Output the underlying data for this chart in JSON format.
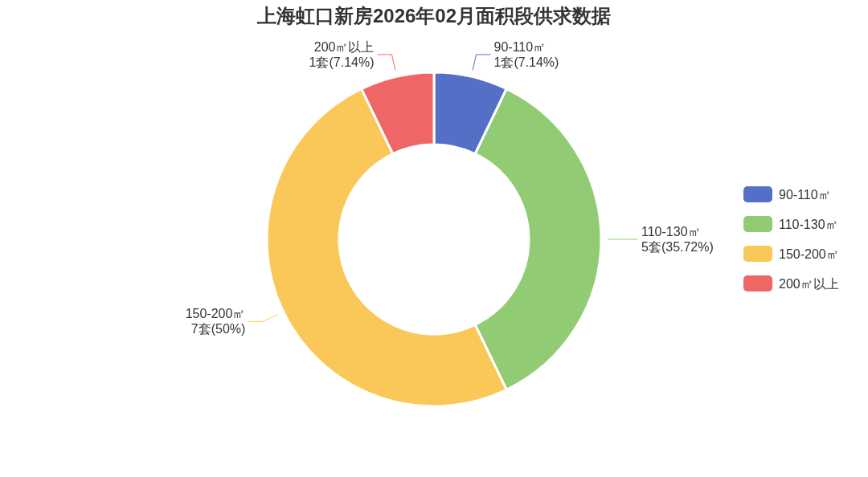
{
  "chart_data": {
    "type": "donut",
    "title": "上海虹口新房2026年02月面积段供求数据",
    "categories": [
      "90-110㎡",
      "110-130㎡",
      "150-200㎡",
      "200㎡以上"
    ],
    "values": [
      1,
      5,
      7,
      1
    ],
    "colors": [
      "#5470c6",
      "#91cc75",
      "#fac858",
      "#ee6666"
    ],
    "value_labels": [
      "1套(7.14%)",
      "5套(35.72%)",
      "7套(50%)",
      "1套(7.14%)"
    ],
    "legend": "right"
  }
}
